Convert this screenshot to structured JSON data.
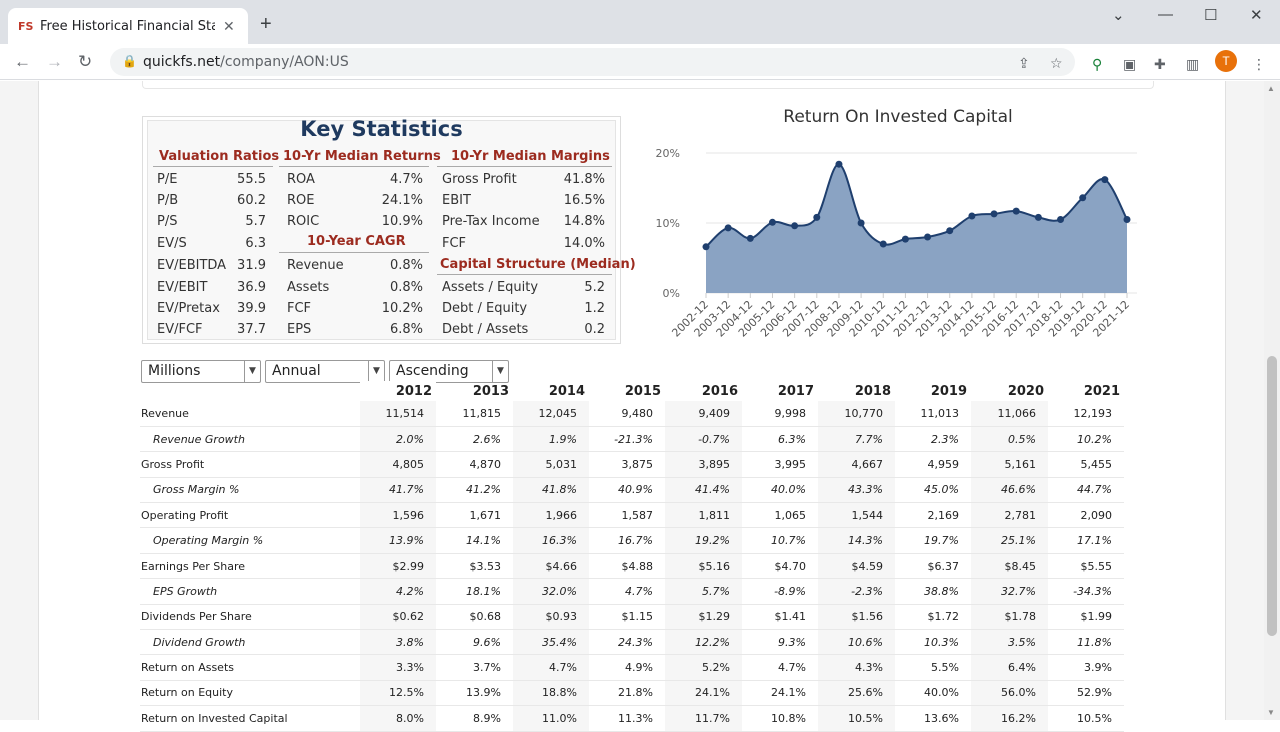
{
  "browser": {
    "tab_favicon": "FS",
    "tab_title": "Free Historical Financial Statemen",
    "url_host": "quickfs.net",
    "url_path": "/company/AON:US",
    "avatar_letter": "T"
  },
  "key_stats": {
    "title": "Key Statistics",
    "valuation_header": "Valuation Ratios",
    "returns_header": "10-Yr Median Returns",
    "margins_header": "10-Yr Median Margins",
    "cagr_header": "10-Year CAGR",
    "capital_header": "Capital Structure (Median)",
    "valuation": [
      {
        "label": "P/E",
        "value": "55.5"
      },
      {
        "label": "P/B",
        "value": "60.2"
      },
      {
        "label": "P/S",
        "value": "5.7"
      },
      {
        "label": "EV/S",
        "value": "6.3"
      },
      {
        "label": "EV/EBITDA",
        "value": "31.9"
      },
      {
        "label": "EV/EBIT",
        "value": "36.9"
      },
      {
        "label": "EV/Pretax",
        "value": "39.9"
      },
      {
        "label": "EV/FCF",
        "value": "37.7"
      }
    ],
    "returns": [
      {
        "label": "ROA",
        "value": "4.7%"
      },
      {
        "label": "ROE",
        "value": "24.1%"
      },
      {
        "label": "ROIC",
        "value": "10.9%"
      }
    ],
    "cagr": [
      {
        "label": "Revenue",
        "value": "0.8%"
      },
      {
        "label": "Assets",
        "value": "0.8%"
      },
      {
        "label": "FCF",
        "value": "10.2%"
      },
      {
        "label": "EPS",
        "value": "6.8%"
      }
    ],
    "margins": [
      {
        "label": "Gross Profit",
        "value": "41.8%"
      },
      {
        "label": "EBIT",
        "value": "16.5%"
      },
      {
        "label": "Pre-Tax Income",
        "value": "14.8%"
      },
      {
        "label": "FCF",
        "value": "14.0%"
      }
    ],
    "capital": [
      {
        "label": "Assets / Equity",
        "value": "5.2"
      },
      {
        "label": "Debt / Equity",
        "value": "1.2"
      },
      {
        "label": "Debt / Assets",
        "value": "0.2"
      }
    ]
  },
  "chart_data": {
    "type": "area",
    "title": "Return On Invested Capital",
    "x": [
      "2002-12",
      "2003-12",
      "2004-12",
      "2005-12",
      "2006-12",
      "2007-12",
      "2008-12",
      "2009-12",
      "2010-12",
      "2011-12",
      "2012-12",
      "2013-12",
      "2014-12",
      "2015-12",
      "2016-12",
      "2017-12",
      "2018-12",
      "2019-12",
      "2020-12",
      "2021-12"
    ],
    "values": [
      6.6,
      9.3,
      7.8,
      10.1,
      9.6,
      10.8,
      18.4,
      10.0,
      7.0,
      7.7,
      8.0,
      8.9,
      11.0,
      11.3,
      11.7,
      10.8,
      10.5,
      13.6,
      16.2,
      10.5
    ],
    "ylim": [
      0,
      20
    ],
    "yticks": [
      "0%",
      "10%",
      "20%"
    ],
    "grid": true,
    "line_color": "#1f3f6e",
    "fill_color": "#8aa3c3"
  },
  "controls": {
    "units": "Millions",
    "period": "Annual",
    "order": "Ascending"
  },
  "table": {
    "years": [
      "2012",
      "2013",
      "2014",
      "2015",
      "2016",
      "2017",
      "2018",
      "2019",
      "2020",
      "2021"
    ],
    "rows": [
      {
        "label": "Revenue",
        "sub": false,
        "values": [
          "11,514",
          "11,815",
          "12,045",
          "9,480",
          "9,409",
          "9,998",
          "10,770",
          "11,013",
          "11,066",
          "12,193"
        ]
      },
      {
        "label": "Revenue Growth",
        "sub": true,
        "values": [
          "2.0%",
          "2.6%",
          "1.9%",
          "-21.3%",
          "-0.7%",
          "6.3%",
          "7.7%",
          "2.3%",
          "0.5%",
          "10.2%"
        ]
      },
      {
        "label": "Gross Profit",
        "sub": false,
        "values": [
          "4,805",
          "4,870",
          "5,031",
          "3,875",
          "3,895",
          "3,995",
          "4,667",
          "4,959",
          "5,161",
          "5,455"
        ]
      },
      {
        "label": "Gross Margin %",
        "sub": true,
        "values": [
          "41.7%",
          "41.2%",
          "41.8%",
          "40.9%",
          "41.4%",
          "40.0%",
          "43.3%",
          "45.0%",
          "46.6%",
          "44.7%"
        ]
      },
      {
        "label": "Operating Profit",
        "sub": false,
        "values": [
          "1,596",
          "1,671",
          "1,966",
          "1,587",
          "1,811",
          "1,065",
          "1,544",
          "2,169",
          "2,781",
          "2,090"
        ]
      },
      {
        "label": "Operating Margin %",
        "sub": true,
        "values": [
          "13.9%",
          "14.1%",
          "16.3%",
          "16.7%",
          "19.2%",
          "10.7%",
          "14.3%",
          "19.7%",
          "25.1%",
          "17.1%"
        ]
      },
      {
        "label": "Earnings Per Share",
        "sub": false,
        "values": [
          "$2.99",
          "$3.53",
          "$4.66",
          "$4.88",
          "$5.16",
          "$4.70",
          "$4.59",
          "$6.37",
          "$8.45",
          "$5.55"
        ]
      },
      {
        "label": "EPS Growth",
        "sub": true,
        "values": [
          "4.2%",
          "18.1%",
          "32.0%",
          "4.7%",
          "5.7%",
          "-8.9%",
          "-2.3%",
          "38.8%",
          "32.7%",
          "-34.3%"
        ]
      },
      {
        "label": "Dividends Per Share",
        "sub": false,
        "values": [
          "$0.62",
          "$0.68",
          "$0.93",
          "$1.15",
          "$1.29",
          "$1.41",
          "$1.56",
          "$1.72",
          "$1.78",
          "$1.99"
        ]
      },
      {
        "label": "Dividend Growth",
        "sub": true,
        "values": [
          "3.8%",
          "9.6%",
          "35.4%",
          "24.3%",
          "12.2%",
          "9.3%",
          "10.6%",
          "10.3%",
          "3.5%",
          "11.8%"
        ]
      },
      {
        "label": "Return on Assets",
        "sub": false,
        "values": [
          "3.3%",
          "3.7%",
          "4.7%",
          "4.9%",
          "5.2%",
          "4.7%",
          "4.3%",
          "5.5%",
          "6.4%",
          "3.9%"
        ]
      },
      {
        "label": "Return on Equity",
        "sub": false,
        "values": [
          "12.5%",
          "13.9%",
          "18.8%",
          "21.8%",
          "24.1%",
          "24.1%",
          "25.6%",
          "40.0%",
          "56.0%",
          "52.9%"
        ]
      },
      {
        "label": "Return on Invested Capital",
        "sub": false,
        "values": [
          "8.0%",
          "8.9%",
          "11.0%",
          "11.3%",
          "11.7%",
          "10.8%",
          "10.5%",
          "13.6%",
          "16.2%",
          "10.5%"
        ]
      }
    ]
  }
}
